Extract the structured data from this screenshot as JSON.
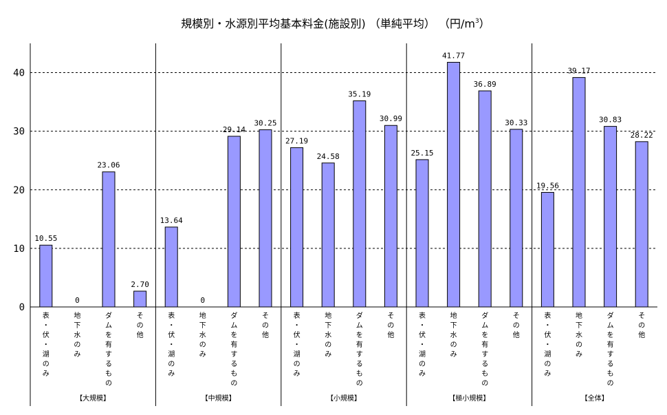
{
  "chart_data": {
    "type": "bar",
    "title": "規模別・水源別平均基本料金(施設別) （単純平均） （円/m",
    "title_sup": "3",
    "title_close": "）",
    "xlabel": "",
    "ylabel": "",
    "ylim": [
      0,
      45
    ],
    "yticks": [
      "0",
      "10",
      "20",
      "30",
      "40"
    ],
    "grid": true,
    "bar_color": "#9999ff",
    "groups": [
      {
        "name": "【大規模】",
        "categories": [
          "表・伏・湖のみ",
          "地下水のみ",
          "ダムを有するもの",
          "その他"
        ],
        "values": [
          10.55,
          0,
          23.06,
          2.7
        ],
        "labels": [
          "10.55",
          "0",
          "23.06",
          "2.70"
        ]
      },
      {
        "name": "【中規模】",
        "categories": [
          "表・伏・湖のみ",
          "地下水のみ",
          "ダムを有するもの",
          "その他"
        ],
        "values": [
          13.64,
          0,
          29.14,
          30.25
        ],
        "labels": [
          "13.64",
          "0",
          "29.14",
          "30.25"
        ]
      },
      {
        "name": "【小規模】",
        "categories": [
          "表・伏・湖のみ",
          "地下水のみ",
          "ダムを有するもの",
          "その他"
        ],
        "values": [
          27.19,
          24.58,
          35.19,
          30.99
        ],
        "labels": [
          "27.19",
          "24.58",
          "35.19",
          "30.99"
        ]
      },
      {
        "name": "【極小規模】",
        "categories": [
          "表・伏・湖のみ",
          "地下水のみ",
          "ダムを有するもの",
          "その他"
        ],
        "values": [
          25.15,
          41.77,
          36.89,
          30.33
        ],
        "labels": [
          "25.15",
          "41.77",
          "36.89",
          "30.33"
        ]
      },
      {
        "name": "【全体】",
        "categories": [
          "表・伏・湖のみ",
          "地下水のみ",
          "ダムを有するもの",
          "その他"
        ],
        "values": [
          19.56,
          39.17,
          30.83,
          28.22
        ],
        "labels": [
          "19.56",
          "39.17",
          "30.83",
          "28.22"
        ]
      }
    ]
  }
}
